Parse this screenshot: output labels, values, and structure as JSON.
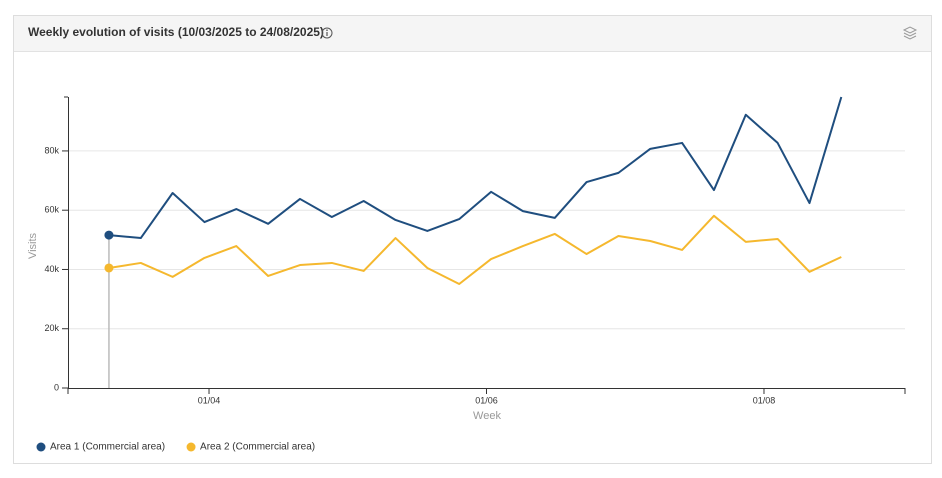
{
  "chart_data": {
    "type": "line",
    "title": "Weekly evolution of visits (10/03/2025 to 24/08/2025)",
    "x_label": "Week",
    "y_label": "Visits",
    "x": [
      "2025-03-10",
      "2025-03-17",
      "2025-03-24",
      "2025-03-31",
      "2025-04-07",
      "2025-04-14",
      "2025-04-21",
      "2025-04-28",
      "2025-05-05",
      "2025-05-12",
      "2025-05-19",
      "2025-05-26",
      "2025-06-02",
      "2025-06-09",
      "2025-06-16",
      "2025-06-23",
      "2025-06-30",
      "2025-07-07",
      "2025-07-14",
      "2025-07-21",
      "2025-07-28",
      "2025-08-04",
      "2025-08-11",
      "2025-08-18"
    ],
    "series": [
      {
        "name": "Area 1 (Commercial area)",
        "color": "#1f4e7f",
        "values": [
          51600,
          50600,
          65800,
          56000,
          60400,
          55400,
          63800,
          57700,
          63100,
          56700,
          53000,
          57000,
          66200,
          59700,
          57400,
          69500,
          72600,
          80700,
          82700,
          66800,
          92200,
          82700,
          62400,
          98200
        ]
      },
      {
        "name": "Area 2 (Commercial area)",
        "color": "#f5b82e",
        "values": [
          40500,
          42200,
          37500,
          43900,
          47900,
          37800,
          41500,
          42200,
          39500,
          50600,
          40500,
          35100,
          43500,
          47900,
          52000,
          45200,
          51300,
          49600,
          46600,
          58100,
          49300,
          50300,
          39200,
          44200
        ]
      }
    ],
    "xlim": [
      "2025-03-01",
      "2025-09-01"
    ],
    "xticks": [
      {
        "value": "2025-04-01",
        "label": "01/04"
      },
      {
        "value": "2025-06-01",
        "label": "01/06"
      },
      {
        "value": "2025-08-01",
        "label": "01/08"
      }
    ],
    "ylim": [
      0,
      98200
    ],
    "yticks": [
      0,
      {
        "value": 20000,
        "label": "20k"
      },
      {
        "value": 40000,
        "label": "40k"
      },
      {
        "value": 60000,
        "label": "60k"
      },
      {
        "value": 80000,
        "label": "80k"
      }
    ],
    "grid": true,
    "legend": "bottom-left"
  }
}
